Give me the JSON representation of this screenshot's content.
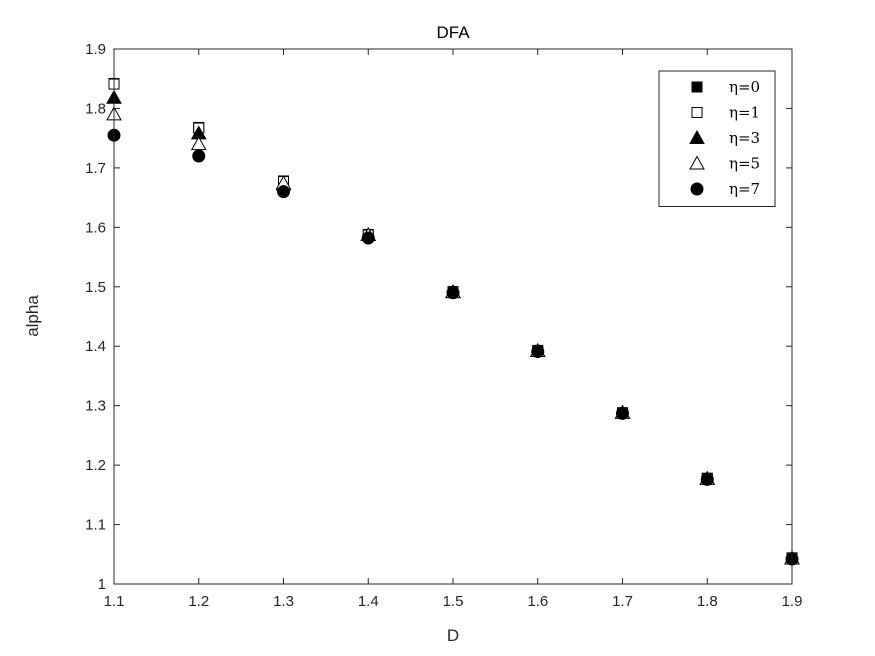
{
  "chart_data": {
    "type": "scatter",
    "title": "DFA",
    "xlabel": "D",
    "ylabel": "alpha",
    "xlim": [
      1.1,
      1.9
    ],
    "ylim": [
      1.0,
      1.9
    ],
    "xticks": [
      1.1,
      1.2,
      1.3,
      1.4,
      1.5,
      1.6,
      1.7,
      1.8,
      1.9
    ],
    "yticks": [
      1.0,
      1.1,
      1.2,
      1.3,
      1.4,
      1.5,
      1.6,
      1.7,
      1.8,
      1.9
    ],
    "xtick_labels": [
      "1.1",
      "1.2",
      "1.3",
      "1.4",
      "1.5",
      "1.6",
      "1.7",
      "1.8",
      "1.9"
    ],
    "ytick_labels": [
      "1",
      "1.1",
      "1.2",
      "1.3",
      "1.4",
      "1.5",
      "1.6",
      "1.7",
      "1.8",
      "1.9"
    ],
    "grid": false,
    "legend_position": "top-right",
    "x": [
      1.1,
      1.2,
      1.3,
      1.4,
      1.5,
      1.6,
      1.7,
      1.8,
      1.9
    ],
    "series": [
      {
        "name": "η=0",
        "marker": "square",
        "filled": true,
        "color": "#000000",
        "values": [
          1.842,
          1.768,
          1.678,
          1.588,
          1.492,
          1.393,
          1.288,
          1.178,
          1.044
        ]
      },
      {
        "name": "η=1",
        "marker": "square",
        "filled": false,
        "color": "#000000",
        "values": [
          1.841,
          1.767,
          1.677,
          1.587,
          1.491,
          1.392,
          1.288,
          1.177,
          1.043
        ]
      },
      {
        "name": "η=3",
        "marker": "triangle",
        "filled": true,
        "color": "#000000",
        "values": [
          1.818,
          1.758,
          1.672,
          1.587,
          1.491,
          1.392,
          1.288,
          1.177,
          1.043
        ]
      },
      {
        "name": "η=5",
        "marker": "triangle",
        "filled": false,
        "color": "#000000",
        "values": [
          1.79,
          1.74,
          1.674,
          1.587,
          1.491,
          1.392,
          1.288,
          1.177,
          1.043
        ]
      },
      {
        "name": "η=7",
        "marker": "circle",
        "filled": true,
        "color": "#000000",
        "values": [
          1.755,
          1.72,
          1.66,
          1.582,
          1.49,
          1.391,
          1.287,
          1.176,
          1.042
        ]
      }
    ]
  }
}
